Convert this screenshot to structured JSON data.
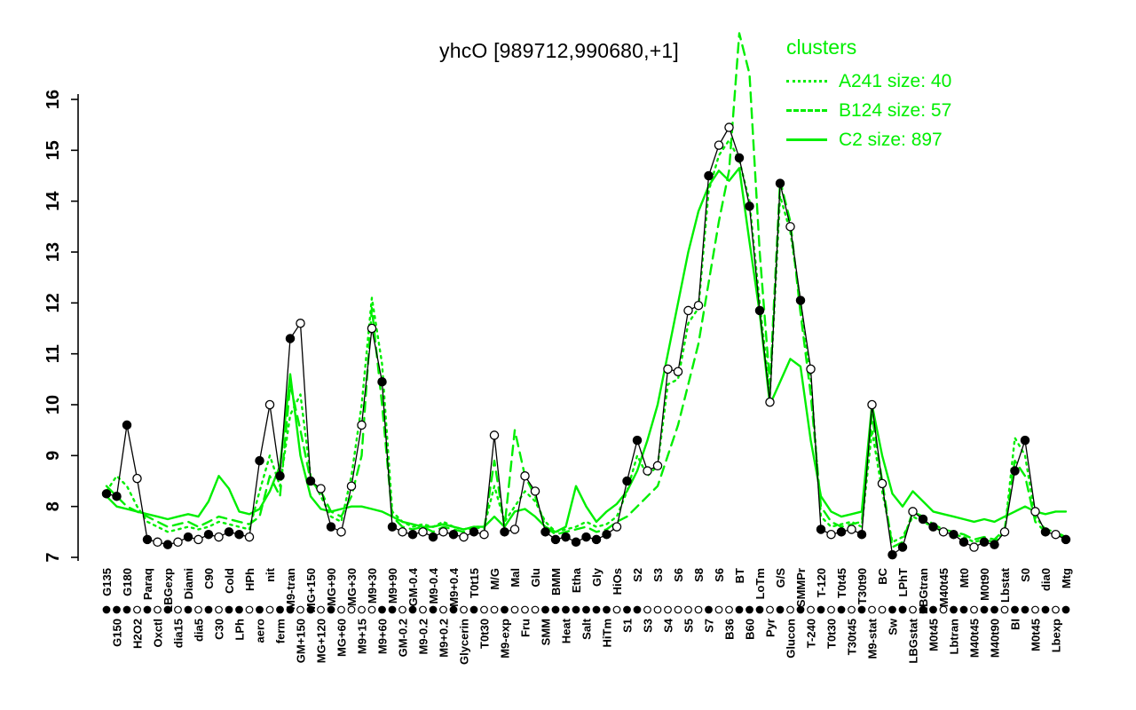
{
  "title": "yhcO [989712,990680,+1]",
  "legend": {
    "title": "clusters",
    "items": [
      {
        "label": "A241 size: 40",
        "style": "dotted"
      },
      {
        "label": "B124 size: 57",
        "style": "dashed"
      },
      {
        "label": "C2 size: 897",
        "style": "solid"
      }
    ]
  },
  "colors": {
    "cluster_green": "#00ee00",
    "gene_series": "#000000",
    "background": "#ffffff"
  },
  "chart_data": {
    "type": "line",
    "title": "yhcO [989712,990680,+1]",
    "xlabel": "",
    "ylabel": "",
    "ylim": [
      7,
      16
    ],
    "yticks": [
      7,
      8,
      9,
      10,
      11,
      12,
      13,
      14,
      15,
      16
    ],
    "grid": false,
    "legend_position": "top-right",
    "categories": [
      "G135",
      "G150",
      "G180",
      "H2O2",
      "Paraq",
      "Oxctl",
      "LBGexp",
      "dia15",
      "Diami",
      "dia5",
      "C90",
      "C30",
      "Cold",
      "LPh",
      "HPh",
      "aero",
      "nit",
      "ferm",
      "M9-tran",
      "GM+150",
      "MG+150",
      "MG+120",
      "MG+90",
      "MG+60",
      "MG+30",
      "M9+15",
      "M9+30",
      "M9+60",
      "M9+90",
      "GM-0.2",
      "GM-0.4",
      "M9-0.2",
      "M9-0.4",
      "M9+0.2",
      "M9+0.4",
      "Glycerin",
      "T0t15",
      "T0t30",
      "M/G",
      "M9-exp",
      "Mal",
      "Fru",
      "Glu",
      "SMM",
      "BMM",
      "Heat",
      "Etha",
      "Salt",
      "Gly",
      "HiTm",
      "HiOs",
      "S1",
      "S2",
      "S3",
      "S3",
      "S4",
      "S6",
      "S5",
      "S8",
      "S7",
      "S6",
      "B36",
      "BT",
      "B60",
      "LoTm",
      "Pyr",
      "G/S",
      "Glucon",
      "SMMPr",
      "T-240",
      "T-120",
      "T0t30",
      "T0t45",
      "T30t45",
      "T30t90",
      "M9-stat",
      "BC",
      "Sw",
      "LPhT",
      "LBGstat",
      "LBGtran",
      "M0t45",
      "M40t45",
      "Lbtran",
      "Mt0",
      "M40t45",
      "M0t90",
      "M40t90",
      "Lbstat",
      "BI",
      "S0",
      "M0t45",
      "dia0",
      "Lbexp",
      "Mtg"
    ],
    "series": [
      {
        "name": "A241",
        "legend": "A241 size: 40",
        "color": "#00ee00",
        "style": "dotted",
        "markers": false,
        "values": [
          8.3,
          8.6,
          8.4,
          8.0,
          7.7,
          7.6,
          7.5,
          7.55,
          7.6,
          7.55,
          7.6,
          7.7,
          7.65,
          7.6,
          7.55,
          8.3,
          9.0,
          8.4,
          9.8,
          10.2,
          8.6,
          8.2,
          7.8,
          7.7,
          8.6,
          10.0,
          12.1,
          10.8,
          7.9,
          7.7,
          7.6,
          7.65,
          7.6,
          7.7,
          7.6,
          7.55,
          7.6,
          7.6,
          8.4,
          7.7,
          8.0,
          8.3,
          8.1,
          7.7,
          7.5,
          7.55,
          7.6,
          7.7,
          7.6,
          7.65,
          7.8,
          8.3,
          9.0,
          8.6,
          8.8,
          10.4,
          10.5,
          11.6,
          11.9,
          14.2,
          14.9,
          15.2,
          14.8,
          14.0,
          12.0,
          10.2,
          14.1,
          13.4,
          12.0,
          10.5,
          7.8,
          7.6,
          7.65,
          7.7,
          7.6,
          9.5,
          8.3,
          7.3,
          7.4,
          7.8,
          7.7,
          7.6,
          7.5,
          7.45,
          7.4,
          7.3,
          7.35,
          7.3,
          7.5,
          9.35,
          9.0,
          7.8,
          7.55,
          7.5,
          7.4
        ]
      },
      {
        "name": "B124",
        "legend": "B124 size: 57",
        "color": "#00ee00",
        "style": "dashed",
        "markers": false,
        "values": [
          8.4,
          8.2,
          8.0,
          7.9,
          7.8,
          7.7,
          7.6,
          7.65,
          7.7,
          7.6,
          7.7,
          7.8,
          7.75,
          7.7,
          7.65,
          7.8,
          8.6,
          8.2,
          10.4,
          9.5,
          8.5,
          8.3,
          7.9,
          7.8,
          8.2,
          9.0,
          11.9,
          10.0,
          7.8,
          7.6,
          7.55,
          7.6,
          7.5,
          7.6,
          7.55,
          7.5,
          7.6,
          7.55,
          8.9,
          7.6,
          9.5,
          8.6,
          8.2,
          7.6,
          7.45,
          7.5,
          7.55,
          7.6,
          7.5,
          7.55,
          7.7,
          7.8,
          8.0,
          8.2,
          8.4,
          9.0,
          9.6,
          10.4,
          11.2,
          12.4,
          13.6,
          14.6,
          17.3,
          16.5,
          13.0,
          10.4,
          14.4,
          13.6,
          11.8,
          10.2,
          8.0,
          7.7,
          7.6,
          7.65,
          7.7,
          9.8,
          8.5,
          7.2,
          7.3,
          7.9,
          7.8,
          7.65,
          7.55,
          7.5,
          7.45,
          7.35,
          7.4,
          7.35,
          7.55,
          8.9,
          8.6,
          7.7,
          7.5,
          7.45,
          7.4
        ]
      },
      {
        "name": "C2",
        "legend": "C2 size: 897",
        "color": "#00ee00",
        "style": "solid",
        "markers": false,
        "values": [
          8.2,
          8.0,
          7.95,
          7.9,
          7.85,
          7.8,
          7.75,
          7.8,
          7.85,
          7.8,
          8.1,
          8.6,
          8.35,
          7.9,
          7.85,
          7.95,
          8.3,
          8.8,
          10.6,
          9.0,
          8.2,
          7.95,
          7.9,
          7.95,
          8.0,
          8.0,
          7.95,
          7.9,
          7.8,
          7.7,
          7.65,
          7.6,
          7.6,
          7.65,
          7.6,
          7.55,
          7.6,
          7.6,
          7.8,
          7.6,
          7.9,
          7.95,
          7.8,
          7.6,
          7.5,
          7.6,
          8.4,
          8.0,
          7.7,
          7.9,
          8.05,
          8.3,
          8.7,
          9.3,
          10.0,
          11.0,
          12.0,
          13.0,
          13.8,
          14.3,
          14.6,
          14.4,
          14.65,
          13.2,
          11.8,
          10.0,
          10.45,
          10.9,
          10.75,
          9.3,
          8.2,
          7.9,
          7.8,
          7.85,
          7.9,
          10.0,
          9.0,
          8.25,
          8.0,
          8.3,
          8.1,
          7.9,
          7.85,
          7.8,
          7.75,
          7.7,
          7.75,
          7.7,
          7.8,
          7.9,
          8.0,
          7.9,
          7.85,
          7.9,
          7.9
        ]
      },
      {
        "name": "gene",
        "legend": "yhcO",
        "color": "#000000",
        "style": "solid",
        "markers": true,
        "values": [
          8.25,
          8.2,
          9.6,
          8.55,
          7.35,
          7.3,
          7.25,
          7.3,
          7.4,
          7.35,
          7.45,
          7.4,
          7.5,
          7.45,
          7.4,
          8.9,
          10.0,
          8.6,
          11.3,
          11.6,
          8.5,
          8.35,
          7.6,
          7.5,
          8.4,
          9.6,
          11.5,
          10.45,
          7.6,
          7.5,
          7.45,
          7.5,
          7.4,
          7.5,
          7.45,
          7.4,
          7.5,
          7.45,
          9.4,
          7.5,
          7.55,
          8.6,
          8.3,
          7.5,
          7.35,
          7.4,
          7.3,
          7.4,
          7.35,
          7.45,
          7.6,
          8.5,
          9.3,
          8.7,
          8.8,
          10.7,
          10.65,
          11.85,
          11.95,
          14.5,
          15.1,
          15.45,
          14.85,
          13.9,
          11.85,
          10.05,
          14.35,
          13.5,
          12.05,
          10.7,
          7.55,
          7.45,
          7.5,
          7.55,
          7.45,
          10.0,
          8.45,
          7.05,
          7.2,
          7.9,
          7.75,
          7.6,
          7.5,
          7.45,
          7.3,
          7.2,
          7.3,
          7.25,
          7.5,
          8.7,
          9.3,
          7.9,
          7.5,
          7.45,
          7.35
        ],
        "open": [
          false,
          false,
          false,
          true,
          false,
          true,
          false,
          true,
          false,
          true,
          false,
          true,
          false,
          false,
          true,
          false,
          true,
          false,
          false,
          true,
          false,
          true,
          false,
          true,
          true,
          true,
          true,
          false,
          false,
          true,
          false,
          true,
          false,
          true,
          false,
          true,
          false,
          true,
          true,
          false,
          true,
          true,
          true,
          false,
          false,
          false,
          false,
          false,
          false,
          false,
          true,
          false,
          false,
          true,
          true,
          true,
          true,
          true,
          true,
          false,
          true,
          true,
          false,
          false,
          false,
          true,
          false,
          true,
          false,
          true,
          false,
          true,
          false,
          true,
          false,
          true,
          true,
          false,
          false,
          true,
          false,
          false,
          true,
          false,
          false,
          true,
          false,
          false,
          true,
          false,
          false,
          true,
          false,
          true,
          false
        ]
      }
    ]
  }
}
